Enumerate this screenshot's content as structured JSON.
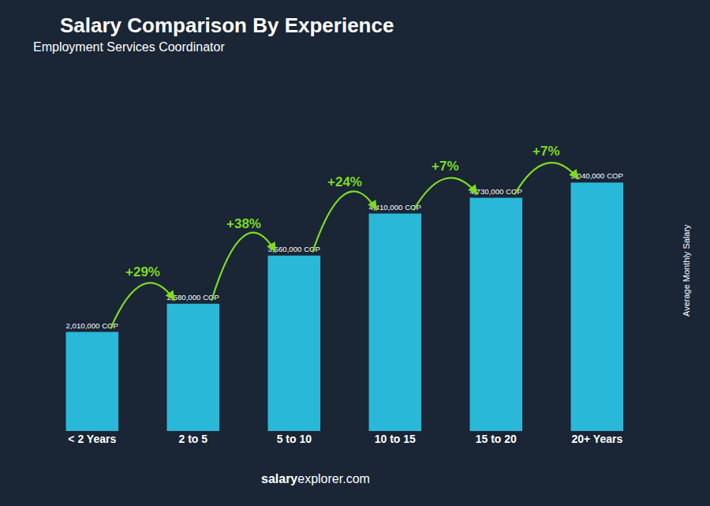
{
  "chart_data": {
    "type": "bar",
    "title": "Salary Comparison By Experience",
    "subtitle": "Employment Services Coordinator",
    "ylabel": "Average Monthly Salary",
    "categories": [
      "< 2 Years",
      "2 to 5",
      "5 to 10",
      "10 to 15",
      "15 to 20",
      "20+ Years"
    ],
    "values": [
      2010000,
      2580000,
      3560000,
      4410000,
      4730000,
      5040000
    ],
    "value_labels": [
      "2,010,000 COP",
      "2,580,000 COP",
      "3,560,000 COP",
      "4,410,000 COP",
      "4,730,000 COP",
      "5,040,000 COP"
    ],
    "data_labels": true,
    "color": "#29b8d8",
    "annotations": [
      {
        "text": "+29%",
        "color": "#7ddc1f"
      },
      {
        "text": "+38%",
        "color": "#7ddc1f"
      },
      {
        "text": "+24%",
        "color": "#7ddc1f"
      },
      {
        "text": "+7%",
        "color": "#7ddc1f"
      },
      {
        "text": "+7%",
        "color": "#7ddc1f"
      }
    ],
    "footer": [
      "salary",
      "explorer.com"
    ],
    "ylim": [
      0,
      6500000
    ],
    "grid": false,
    "tick_labels": "x"
  }
}
